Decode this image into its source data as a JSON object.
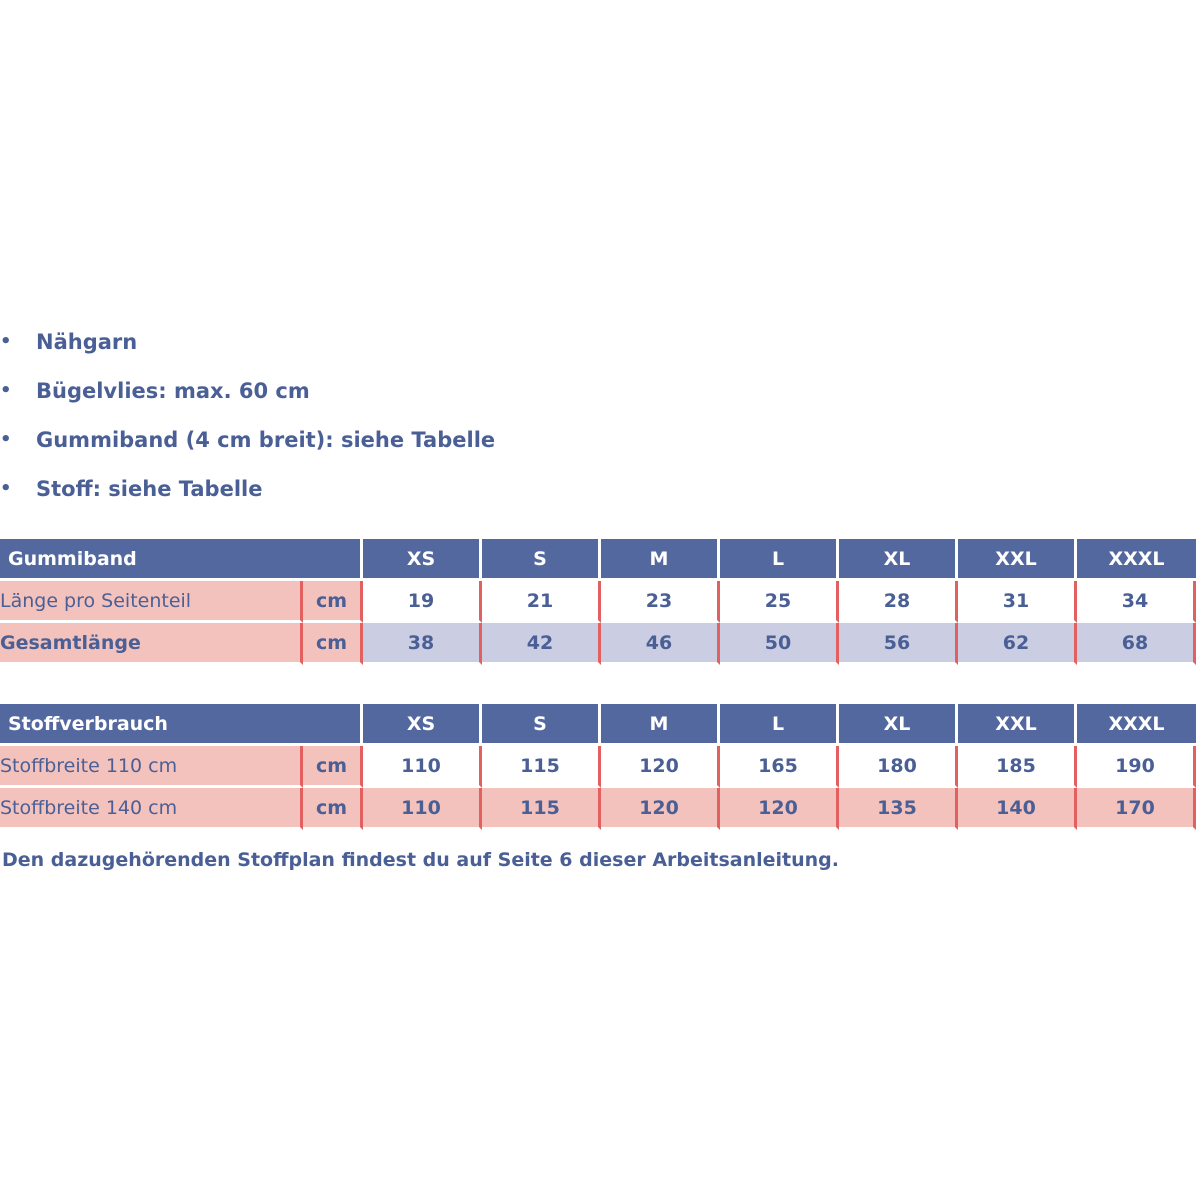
{
  "materials": [
    "Nähgarn",
    "Bügelvlies: max. 60 cm",
    "Gummiband (4 cm breit): siehe Tabelle",
    "Stoff: siehe Tabelle"
  ],
  "bullet": "•",
  "sizes": [
    "XS",
    "S",
    "M",
    "L",
    "XL",
    "XXL",
    "XXXL"
  ],
  "gummiband": {
    "title": "Gummiband",
    "rows": [
      {
        "label": "Länge pro Seitenteil",
        "unit": "cm",
        "values": [
          "19",
          "21",
          "23",
          "25",
          "28",
          "31",
          "34"
        ]
      },
      {
        "label": "Gesamtlänge",
        "unit": "cm",
        "values": [
          "38",
          "42",
          "46",
          "50",
          "56",
          "62",
          "68"
        ]
      }
    ]
  },
  "stoffverbrauch": {
    "title": "Stoffverbrauch",
    "rows": [
      {
        "label": "Stoffbreite 110 cm",
        "unit": "cm",
        "values": [
          "110",
          "115",
          "120",
          "165",
          "180",
          "185",
          "190"
        ]
      },
      {
        "label": "Stoffbreite 140 cm",
        "unit": "cm",
        "values": [
          "110",
          "115",
          "120",
          "120",
          "135",
          "140",
          "170"
        ]
      }
    ]
  },
  "footer_note": "Den dazugehörenden Stoffplan findest du auf Seite 6 dieser Arbeitsanleitung.",
  "colors": {
    "text": "#4a5f95",
    "header_bg": "#5468a0",
    "label_bg": "#f4c2bc",
    "alt_row_bg": "#cbcde2",
    "divider": "#e2605f"
  }
}
